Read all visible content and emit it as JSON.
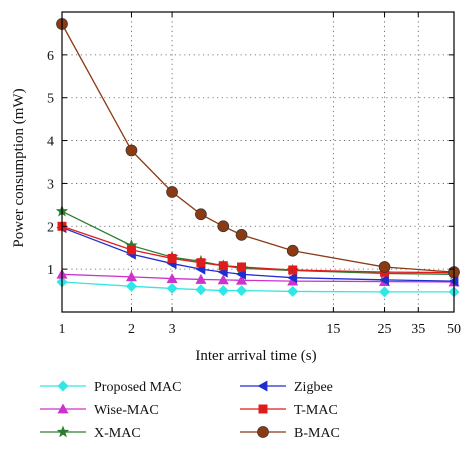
{
  "chart_data": {
    "type": "line",
    "title": "",
    "xlabel": "Inter arrival time (s)",
    "ylabel": "Power consumption (mW)",
    "x_scale": "log",
    "xlim": [
      1,
      50
    ],
    "ylim": [
      0,
      7
    ],
    "grid": true,
    "legend_position": "bottom",
    "x_ticks": [
      1,
      2,
      3,
      15,
      25,
      35,
      50
    ],
    "y_ticks": [
      1,
      2,
      3,
      4,
      5,
      6
    ],
    "x": [
      1,
      2,
      3,
      4,
      5,
      6,
      10,
      25,
      50
    ],
    "series": [
      {
        "name": "Proposed MAC",
        "color": "#33e6e6",
        "marker": "diamond",
        "values": [
          0.7,
          0.6,
          0.55,
          0.52,
          0.5,
          0.5,
          0.48,
          0.47,
          0.47
        ]
      },
      {
        "name": "Wise-MAC",
        "color": "#cc33cc",
        "marker": "triangle-up",
        "values": [
          0.88,
          0.82,
          0.78,
          0.76,
          0.75,
          0.74,
          0.72,
          0.71,
          0.7
        ]
      },
      {
        "name": "X-MAC",
        "color": "#2e7d32",
        "marker": "star",
        "values": [
          2.35,
          1.55,
          1.28,
          1.18,
          1.08,
          1.02,
          0.97,
          0.9,
          0.88
        ]
      },
      {
        "name": "Zigbee",
        "color": "#1f2fcf",
        "marker": "triangle-left",
        "values": [
          1.97,
          1.35,
          1.13,
          1.0,
          0.93,
          0.88,
          0.8,
          0.75,
          0.72
        ]
      },
      {
        "name": "T-MAC",
        "color": "#e01b1b",
        "marker": "square",
        "values": [
          2.0,
          1.45,
          1.25,
          1.15,
          1.08,
          1.05,
          0.98,
          0.93,
          0.92
        ]
      },
      {
        "name": "B-MAC",
        "color": "#8b3a14",
        "marker": "circle",
        "values": [
          6.72,
          3.77,
          2.8,
          2.28,
          2.0,
          1.8,
          1.43,
          1.05,
          0.93
        ]
      }
    ]
  }
}
